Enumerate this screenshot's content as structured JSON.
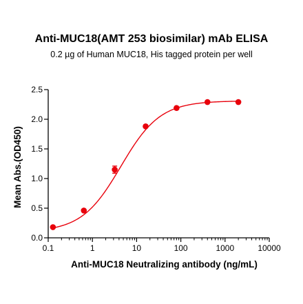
{
  "chart_data": {
    "type": "scatter",
    "title": "Anti-MUC18(AMT 253 biosimilar) mAb ELISA",
    "subtitle": "0.2 µg of Human MUC18, His tagged protein per well",
    "xlabel": "Anti-MUC18 Neutralizing antibody (ng/mL)",
    "ylabel": "Mean Abs.(OD450)",
    "x_scale": "log",
    "xlim": [
      0.1,
      10000
    ],
    "ylim": [
      0,
      2.5
    ],
    "x_ticks": [
      0.1,
      1,
      10,
      100,
      1000,
      10000
    ],
    "x_tick_labels": [
      "0.1",
      "1",
      "10",
      "100",
      "1000",
      "10000"
    ],
    "y_ticks": [
      0,
      0.5,
      1,
      1.5,
      2,
      2.5
    ],
    "y_tick_labels": [
      "0.0",
      "0.5",
      "1.0",
      "1.5",
      "2.0",
      "2.5"
    ],
    "grid": false,
    "series": [
      {
        "color": "#e8000b",
        "x": [
          0.128,
          0.64,
          3.2,
          16,
          80,
          400,
          2000
        ],
        "y": [
          0.18,
          0.46,
          1.15,
          1.88,
          2.19,
          2.29,
          2.29
        ],
        "y_error": [
          0.0,
          0.0,
          0.06,
          0.0,
          0.0,
          0.0,
          0.0
        ],
        "fit": {
          "model": "4PL",
          "bottom": 0.1,
          "top": 2.31,
          "ec50": 4.4,
          "hill": 0.98
        }
      }
    ]
  }
}
